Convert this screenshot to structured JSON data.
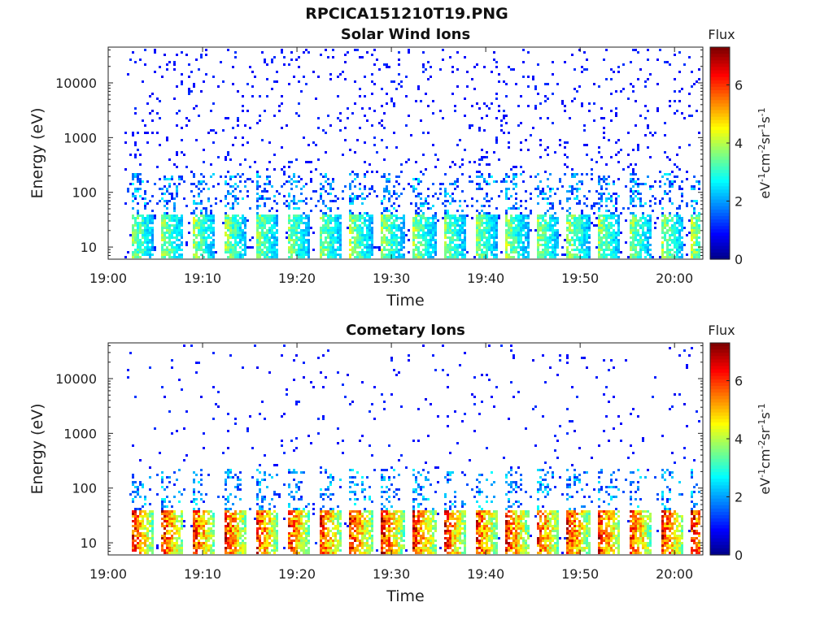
{
  "figure_title": "RPCICA151210T19.PNG",
  "chart_data": [
    {
      "type": "heatmap",
      "title": "Solar Wind Ions",
      "xlabel": "Time",
      "ylabel": "Energy (eV)",
      "x_ticks": [
        "19:00",
        "19:10",
        "19:20",
        "19:30",
        "19:40",
        "19:50",
        "20:00"
      ],
      "x_range": [
        "19:00",
        "20:03"
      ],
      "y_scale": "log",
      "y_ticks": [
        "10",
        "100",
        "1000",
        "10000"
      ],
      "y_range": [
        6,
        45000
      ],
      "colorbar": {
        "label": "Flux",
        "unit": "eV-1cm-2sr-1s-1",
        "ticks": [
          "0",
          "2",
          "4",
          "6"
        ],
        "range": [
          0,
          7.3
        ],
        "colormap": "jet"
      },
      "pattern": {
        "sweep_start_minutes": [
          2.3,
          5.5,
          8.8,
          12.2,
          15.5,
          18.8,
          22.2,
          25.5,
          28.8,
          32.2,
          35.4,
          38.7,
          42,
          45.2,
          48.5,
          51.8,
          55,
          58.5,
          61.7
        ],
        "low_energy_peak_flux": 4.2,
        "low_energy_peak_eV": [
          8,
          30
        ],
        "background_scatter_flux": 1,
        "scatter_density": 0.055
      }
    },
    {
      "type": "heatmap",
      "title": "Cometary Ions",
      "xlabel": "Time",
      "ylabel": "Energy (eV)",
      "x_ticks": [
        "19:00",
        "19:10",
        "19:20",
        "19:30",
        "19:40",
        "19:50",
        "20:00"
      ],
      "x_range": [
        "19:00",
        "20:03"
      ],
      "y_scale": "log",
      "y_ticks": [
        "10",
        "100",
        "1000",
        "10000"
      ],
      "y_range": [
        6,
        45000
      ],
      "colorbar": {
        "label": "Flux",
        "unit": "eV-1cm-2sr-1s-1",
        "ticks": [
          "0",
          "2",
          "4",
          "6"
        ],
        "range": [
          0,
          7.3
        ],
        "colormap": "jet"
      },
      "pattern": {
        "sweep_start_minutes": [
          2.3,
          5.5,
          8.8,
          12.2,
          15.5,
          18.8,
          22.2,
          25.5,
          28.8,
          32.2,
          35.4,
          38.7,
          42,
          45.2,
          48.5,
          51.8,
          55,
          58.5,
          61.7
        ],
        "low_energy_peak_flux": 6.8,
        "low_energy_peak_eV": [
          8,
          30
        ],
        "background_scatter_flux": 1,
        "scatter_density": 0.022
      }
    }
  ]
}
